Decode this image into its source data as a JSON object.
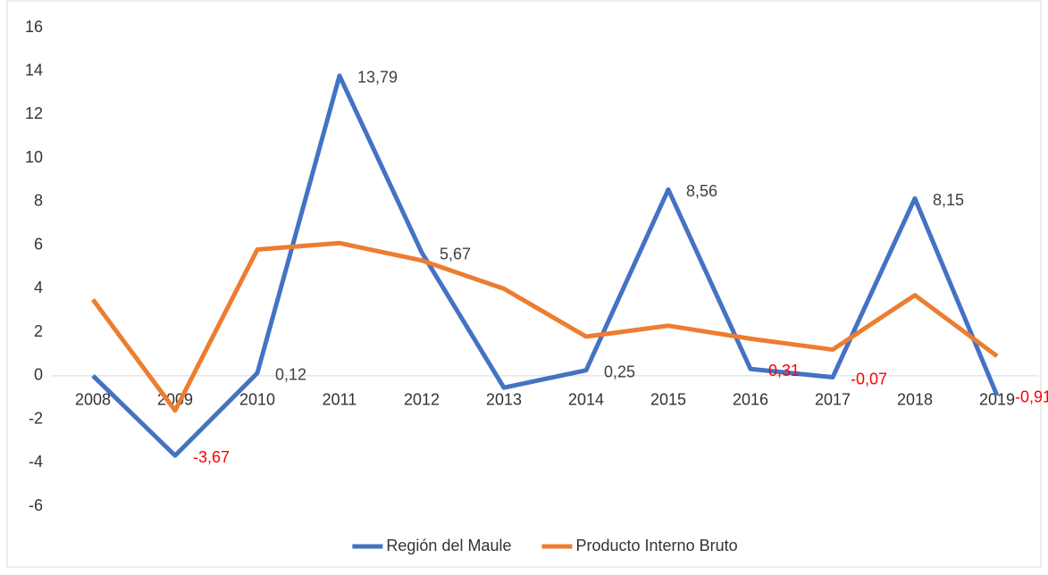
{
  "chart_data": {
    "type": "line",
    "categories": [
      "2008",
      "2009",
      "2010",
      "2011",
      "2012",
      "2013",
      "2014",
      "2015",
      "2016",
      "2017",
      "2018",
      "2019"
    ],
    "series": [
      {
        "name": "Región del Maule",
        "color": "#4472c4",
        "values": [
          0,
          -3.67,
          0.12,
          13.79,
          5.67,
          -0.55,
          0.25,
          8.56,
          0.31,
          -0.07,
          8.15,
          -0.91
        ],
        "value_labels": [
          null,
          "-3,67",
          "0,12",
          "13,79",
          "5,67",
          null,
          "0,25",
          "8,56",
          "0,31",
          "-0,07",
          "8,15",
          "-0,91"
        ],
        "label_colors": [
          null,
          "#ff0000",
          "#404040",
          "#404040",
          "#404040",
          null,
          "#404040",
          "#404040",
          "#ff0000",
          "#ff0000",
          "#404040",
          "#ff0000"
        ]
      },
      {
        "name": "Producto Interno Bruto",
        "color": "#ed7d31",
        "values": [
          3.5,
          -1.6,
          5.8,
          6.1,
          5.3,
          4.0,
          1.8,
          2.3,
          1.7,
          1.2,
          3.7,
          0.9
        ]
      }
    ],
    "ylim": [
      -6,
      16
    ],
    "yticks": [
      -6,
      -4,
      -2,
      0,
      2,
      4,
      6,
      8,
      10,
      12,
      14,
      16
    ],
    "legend": "bottom"
  }
}
